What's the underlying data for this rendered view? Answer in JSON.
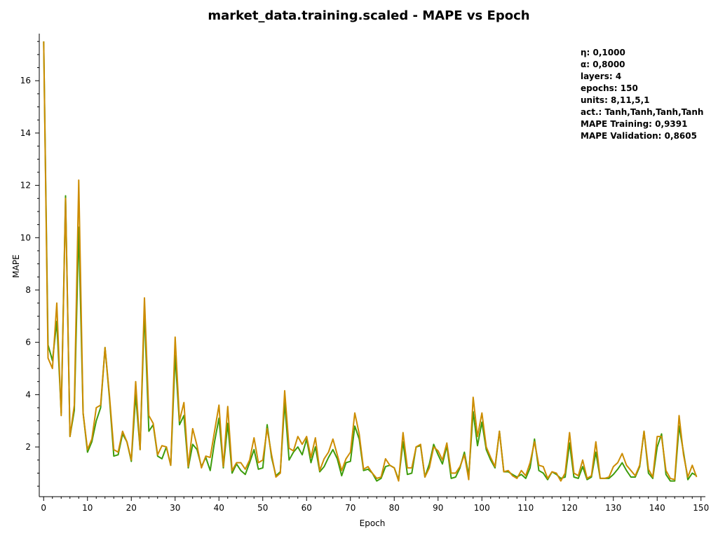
{
  "chart_data": {
    "type": "line",
    "title": "market_data.training.scaled - MAPE vs Epoch",
    "xlabel": "Epoch",
    "ylabel": "MAPE",
    "xlim": [
      -1,
      151
    ],
    "ylim": [
      0.1,
      17.8
    ],
    "xticks": [
      0,
      10,
      20,
      30,
      40,
      50,
      60,
      70,
      80,
      90,
      100,
      110,
      120,
      130,
      140,
      150
    ],
    "yticks": [
      2,
      4,
      6,
      8,
      10,
      12,
      14,
      16
    ],
    "grid": false,
    "legend": "none",
    "info_box": [
      "η: 0,1000",
      "α: 0,8000",
      "layers: 4",
      "epochs: 150",
      "units: 8,11,5,1",
      "act.: Tanh,Tanh,Tanh,Tanh",
      "MAPE Training: 0,9391",
      "MAPE Validation: 0,8605"
    ],
    "series": [
      {
        "color": "#3c9c0c",
        "values": [
          17.5,
          5.9,
          5.3,
          6.8,
          3.3,
          11.6,
          2.4,
          3.4,
          10.4,
          3.3,
          1.8,
          2.2,
          3.0,
          3.5,
          5.8,
          3.9,
          1.65,
          1.7,
          2.5,
          2.2,
          1.45,
          4.0,
          1.9,
          7.2,
          2.6,
          2.85,
          1.65,
          1.55,
          2.0,
          1.3,
          5.5,
          2.85,
          3.2,
          1.2,
          2.1,
          1.9,
          1.25,
          1.6,
          1.1,
          2.2,
          3.1,
          1.2,
          2.9,
          1.0,
          1.35,
          1.1,
          0.95,
          1.4,
          1.9,
          1.15,
          1.2,
          2.85,
          1.6,
          0.9,
          1.05,
          3.7,
          1.5,
          1.8,
          2.0,
          1.7,
          2.3,
          1.4,
          2.0,
          1.05,
          1.25,
          1.6,
          1.9,
          1.55,
          0.9,
          1.4,
          1.45,
          2.8,
          2.3,
          1.1,
          1.15,
          1.0,
          0.7,
          0.8,
          1.25,
          1.3,
          1.2,
          0.75,
          2.2,
          0.95,
          1.0,
          2.0,
          2.05,
          0.85,
          1.35,
          2.1,
          1.7,
          1.35,
          2.05,
          0.8,
          0.85,
          1.2,
          1.8,
          0.9,
          3.35,
          2.05,
          2.95,
          1.9,
          1.5,
          1.2,
          2.6,
          1.05,
          1.05,
          0.95,
          0.85,
          0.95,
          0.8,
          1.2,
          2.3,
          1.1,
          1.0,
          0.75,
          1.05,
          0.95,
          0.8,
          0.85,
          2.15,
          0.85,
          0.8,
          1.25,
          0.75,
          0.85,
          1.8,
          0.8,
          0.8,
          0.8,
          0.95,
          1.15,
          1.4,
          1.1,
          0.85,
          0.85,
          1.25,
          2.6,
          1.0,
          0.8,
          2.0,
          2.5,
          0.95,
          0.7,
          0.7,
          2.8,
          1.8,
          0.75,
          1.0,
          0.9
        ]
      },
      {
        "color": "#cc8c00",
        "values": [
          17.5,
          5.4,
          5.0,
          7.5,
          3.2,
          11.5,
          2.4,
          3.6,
          12.2,
          3.3,
          1.9,
          2.3,
          3.5,
          3.6,
          5.8,
          4.0,
          1.9,
          1.8,
          2.6,
          2.2,
          1.5,
          4.5,
          1.9,
          7.7,
          3.2,
          2.9,
          1.7,
          2.05,
          2.0,
          1.3,
          6.2,
          3.0,
          3.7,
          1.25,
          2.7,
          2.05,
          1.2,
          1.65,
          1.6,
          2.6,
          3.6,
          1.25,
          3.55,
          1.1,
          1.4,
          1.4,
          1.15,
          1.5,
          2.35,
          1.4,
          1.5,
          2.7,
          1.7,
          0.85,
          1.0,
          4.15,
          1.95,
          1.85,
          2.4,
          2.1,
          2.4,
          1.6,
          2.35,
          1.1,
          1.55,
          1.8,
          2.3,
          1.7,
          1.1,
          1.55,
          1.8,
          3.3,
          2.5,
          1.15,
          1.25,
          1.0,
          0.8,
          0.85,
          1.55,
          1.3,
          1.2,
          0.7,
          2.55,
          1.2,
          1.2,
          2.0,
          2.1,
          0.85,
          1.2,
          2.0,
          1.85,
          1.5,
          2.15,
          1.0,
          1.0,
          1.25,
          1.7,
          0.75,
          3.9,
          2.4,
          3.3,
          2.0,
          1.6,
          1.25,
          2.6,
          1.05,
          1.1,
          0.9,
          0.8,
          1.1,
          0.9,
          1.4,
          2.2,
          1.3,
          1.25,
          0.8,
          1.05,
          1.0,
          0.7,
          1.0,
          2.55,
          1.0,
          0.9,
          1.5,
          0.8,
          0.9,
          2.2,
          0.8,
          0.8,
          0.85,
          1.25,
          1.4,
          1.75,
          1.3,
          1.1,
          0.9,
          1.3,
          2.6,
          1.15,
          0.85,
          2.4,
          2.4,
          1.1,
          0.8,
          0.75,
          3.2,
          1.7,
          0.85,
          1.3,
          0.85
        ]
      }
    ]
  }
}
